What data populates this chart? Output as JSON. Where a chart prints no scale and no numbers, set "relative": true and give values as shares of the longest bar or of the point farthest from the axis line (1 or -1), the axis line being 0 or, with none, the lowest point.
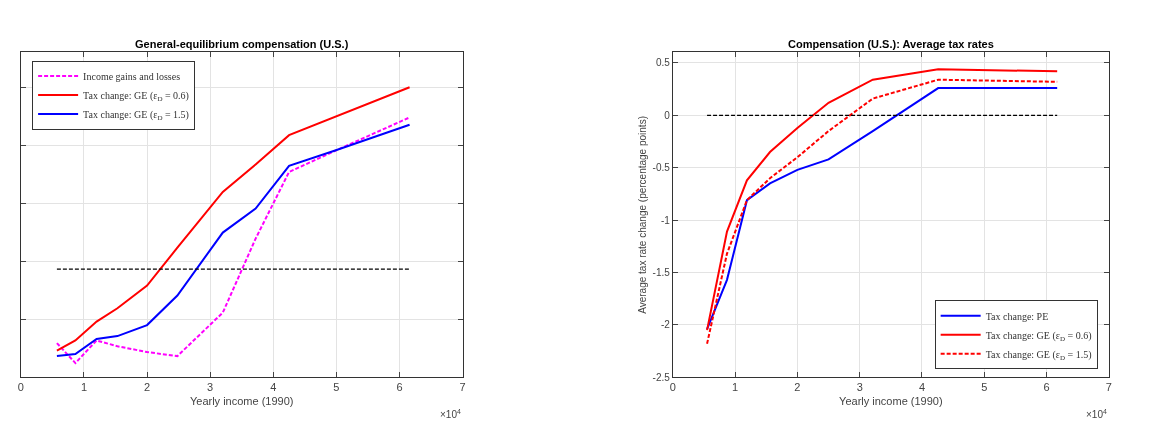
{
  "chart_data": [
    {
      "type": "line",
      "title": "General-equilibrium compensation (U.S.)",
      "xlabel": "Yearly income (1990)",
      "relative": true,
      "xlim": [
        0,
        7
      ],
      "xticks": [
        0,
        1,
        2,
        3,
        4,
        5,
        6,
        7
      ],
      "grid": true,
      "legend": "top left",
      "marker": "none",
      "annotations": [
        "×10$^{4}$"
      ],
      "ref_lines": [
        {
          "axis": "y",
          "value": 0.373,
          "color": "#000000",
          "line_style": "dashed"
        }
      ],
      "series": [
        {
          "name": "Income gains and losses",
          "color": "#ff00ff",
          "line_style": "dashed",
          "x": [
            0.571,
            0.864,
            1.2,
            1.53,
            2.0,
            2.48,
            3.2,
            3.72,
            4.25,
            4.98,
            6.16
          ],
          "values": [
            0.118,
            0.049,
            0.127,
            0.107,
            0.087,
            0.073,
            0.223,
            0.478,
            0.708,
            0.781,
            0.896
          ]
        },
        {
          "name": "Tax change: GE (ε$_{D}$ = 0.6)",
          "color": "#ff0000",
          "line_style": "solid",
          "x": [
            0.571,
            0.864,
            1.2,
            1.53,
            2.0,
            2.48,
            3.2,
            3.72,
            4.25,
            6.16
          ],
          "values": [
            0.092,
            0.127,
            0.192,
            0.238,
            0.316,
            0.447,
            0.639,
            0.734,
            0.835,
            1
          ]
        },
        {
          "name": "Tax change: GE (ε$_{D}$ = 1.5)",
          "color": "#0000ff",
          "line_style": "solid",
          "x": [
            0.571,
            0.864,
            1.2,
            1.53,
            2.0,
            2.48,
            3.2,
            3.72,
            4.25,
            4.98,
            6.16
          ],
          "values": [
            0.073,
            0.08,
            0.132,
            0.142,
            0.18,
            0.282,
            0.499,
            0.582,
            0.729,
            0.782,
            0.871
          ]
        }
      ]
    },
    {
      "type": "line",
      "title": "Compensation (U.S.): Average tax rates",
      "xlabel": "Yearly income (1990)",
      "ylabel": "Average tax rate change (percentage points)",
      "xlim": [
        0,
        7
      ],
      "xticks": [
        0,
        1,
        2,
        3,
        4,
        5,
        6,
        7
      ],
      "ylim": [
        -2.5,
        0.6
      ],
      "yticks": [
        -2.5,
        -2,
        -1.5,
        -1,
        -0.5,
        0,
        0.5
      ],
      "grid": true,
      "legend": "bottom right",
      "marker": "none",
      "annotations": [
        "×10$^{4}$"
      ],
      "ref_lines": [
        {
          "axis": "y",
          "value": 0,
          "color": "#000000",
          "line_style": "dashed"
        }
      ],
      "series": [
        {
          "name": "Tax change: PE",
          "color": "#0000ff",
          "line_style": "solid",
          "x": [
            0.55,
            0.87,
            1.19,
            1.56,
            2.0,
            2.5,
            3.21,
            4.26,
            6.17
          ],
          "values": [
            -2.04,
            -1.57,
            -0.81,
            -0.65,
            -0.52,
            -0.42,
            -0.15,
            0.26,
            0.26
          ]
        },
        {
          "name": "Tax change: GE (ε$_{D}$ = 0.6)",
          "color": "#ff0000",
          "line_style": "solid",
          "x": [
            0.55,
            0.87,
            1.19,
            1.56,
            2.0,
            2.5,
            3.21,
            4.26,
            6.17
          ],
          "values": [
            -2.05,
            -1.11,
            -0.62,
            -0.35,
            -0.12,
            0.12,
            0.34,
            0.44,
            0.42
          ]
        },
        {
          "name": "Tax change: GE (ε$_{D}$ = 1.5)",
          "color": "#ff0000",
          "line_style": "dashed",
          "x": [
            0.55,
            0.87,
            1.19,
            1.56,
            2.0,
            2.5,
            3.21,
            4.26,
            6.17
          ],
          "values": [
            -2.18,
            -1.32,
            -0.81,
            -0.6,
            -0.4,
            -0.15,
            0.16,
            0.34,
            0.32
          ]
        }
      ]
    }
  ]
}
